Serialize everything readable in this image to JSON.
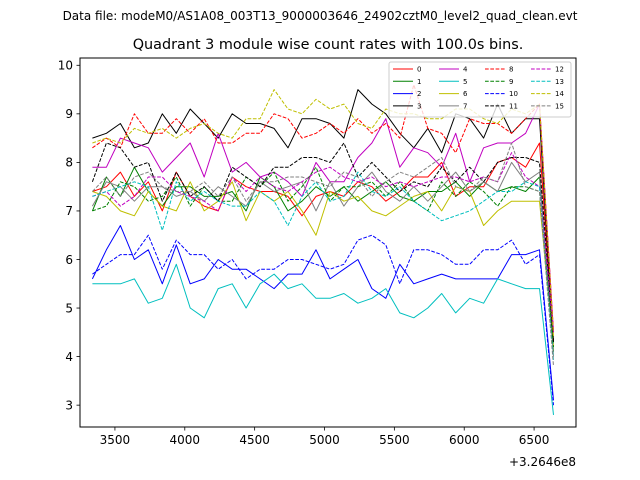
{
  "chart_data": {
    "type": "line",
    "suptitle": "Data file: modeM0/AS1A08_003T13_9000003646_24902cztM0_level2_quad_clean.evt",
    "title": "Quadrant 3 module wise count rates with 100.0s bins.",
    "xlabel": "",
    "ylabel": "",
    "offset_label": "+3.2646e8",
    "xlim": [
      3250,
      6800
    ],
    "ylim": [
      2.55,
      10.15
    ],
    "xticks": [
      3500,
      4000,
      4500,
      5000,
      5500,
      6000,
      6500
    ],
    "xtick_labels": [
      "3500",
      "4000",
      "4500",
      "5000",
      "5500",
      "6000",
      "6500"
    ],
    "yticks": [
      3,
      4,
      5,
      6,
      7,
      8,
      9,
      10
    ],
    "ytick_labels": [
      "3",
      "4",
      "5",
      "6",
      "7",
      "8",
      "9",
      "10"
    ],
    "x": [
      3339,
      3439,
      3539,
      3639,
      3739,
      3839,
      3939,
      4039,
      4139,
      4239,
      4339,
      4439,
      4539,
      4639,
      4739,
      4839,
      4939,
      5039,
      5139,
      5239,
      5339,
      5439,
      5539,
      5639,
      5739,
      5839,
      5939,
      6039,
      6139,
      6239,
      6339,
      6439,
      6539,
      6639
    ],
    "legend_position": "upper right",
    "series": [
      {
        "name": "0",
        "color": "#ff0000",
        "dash": "solid",
        "values": [
          7.4,
          7.5,
          7.8,
          7.3,
          7.6,
          7.0,
          7.8,
          7.3,
          7.1,
          7.0,
          7.7,
          7.5,
          7.4,
          7.4,
          7.3,
          6.9,
          7.3,
          7.4,
          7.3,
          7.6,
          7.5,
          7.2,
          7.4,
          7.7,
          7.7,
          8.0,
          7.3,
          7.5,
          7.5,
          8.0,
          8.1,
          7.9,
          8.4,
          4.3
        ]
      },
      {
        "name": "1",
        "color": "#008000",
        "dash": "solid",
        "values": [
          7.0,
          7.7,
          7.3,
          7.9,
          7.4,
          7.1,
          7.5,
          7.5,
          7.3,
          7.3,
          7.4,
          7.0,
          7.7,
          7.5,
          7.0,
          7.2,
          7.5,
          7.3,
          7.5,
          7.2,
          7.4,
          7.6,
          7.3,
          7.2,
          7.4,
          7.4,
          7.6,
          7.3,
          7.6,
          7.4,
          7.5,
          7.4,
          7.7,
          4.1
        ]
      },
      {
        "name": "2",
        "color": "#0000ff",
        "dash": "solid",
        "values": [
          5.6,
          6.2,
          6.7,
          6.0,
          6.2,
          5.5,
          6.3,
          5.5,
          5.6,
          6.0,
          5.8,
          5.8,
          5.6,
          5.4,
          5.7,
          5.7,
          6.2,
          5.6,
          5.8,
          6.0,
          5.4,
          5.2,
          5.9,
          5.5,
          5.6,
          5.7,
          5.6,
          5.6,
          5.6,
          5.6,
          6.1,
          6.1,
          6.2,
          3.1
        ]
      },
      {
        "name": "3",
        "color": "#000000",
        "dash": "solid",
        "values": [
          8.5,
          8.6,
          8.8,
          8.3,
          8.4,
          9.0,
          8.6,
          9.1,
          8.8,
          8.5,
          9.0,
          8.8,
          8.8,
          8.7,
          8.3,
          8.9,
          8.9,
          8.8,
          8.5,
          9.5,
          9.2,
          9.0,
          8.6,
          8.3,
          8.7,
          8.2,
          9.0,
          8.9,
          8.5,
          9.2,
          8.6,
          8.9,
          8.9,
          4.3
        ]
      },
      {
        "name": "4",
        "color": "#c000c0",
        "dash": "solid",
        "values": [
          7.9,
          7.9,
          8.5,
          8.4,
          8.3,
          7.8,
          8.1,
          8.4,
          7.7,
          8.6,
          7.8,
          8.0,
          7.7,
          7.8,
          7.6,
          7.3,
          8.0,
          7.6,
          7.6,
          8.1,
          8.4,
          8.9,
          7.9,
          8.3,
          8.2,
          7.9,
          8.6,
          7.6,
          8.3,
          8.4,
          8.4,
          8.6,
          9.2,
          4.5
        ]
      },
      {
        "name": "5",
        "color": "#00bfbf",
        "dash": "solid",
        "values": [
          5.5,
          5.5,
          5.5,
          5.6,
          5.1,
          5.2,
          5.9,
          5.0,
          4.8,
          5.4,
          5.5,
          5.0,
          5.5,
          5.7,
          5.4,
          5.5,
          5.2,
          5.2,
          5.3,
          5.1,
          5.2,
          5.4,
          4.9,
          4.8,
          5.0,
          5.3,
          4.9,
          5.2,
          5.1,
          5.6,
          5.5,
          5.4,
          5.4,
          2.8
        ]
      },
      {
        "name": "6",
        "color": "#bfbf00",
        "dash": "solid",
        "values": [
          7.4,
          7.3,
          7.0,
          6.9,
          7.4,
          7.1,
          7.0,
          7.6,
          7.0,
          7.2,
          7.6,
          6.8,
          7.4,
          7.2,
          7.4,
          7.0,
          6.5,
          7.4,
          7.2,
          7.3,
          7.0,
          6.9,
          7.1,
          7.3,
          7.4,
          7.0,
          7.5,
          7.4,
          6.7,
          7.0,
          7.2,
          7.2,
          7.2,
          4.2
        ]
      },
      {
        "name": "7",
        "color": "#808080",
        "dash": "solid",
        "values": [
          7.1,
          7.6,
          7.5,
          7.2,
          7.5,
          7.5,
          7.3,
          7.4,
          7.2,
          7.5,
          7.3,
          7.1,
          7.6,
          7.4,
          7.5,
          7.6,
          7.0,
          7.6,
          7.1,
          7.5,
          7.8,
          7.4,
          7.2,
          7.5,
          7.2,
          7.5,
          7.8,
          7.4,
          7.6,
          7.4,
          8.0,
          7.6,
          7.8,
          4.0
        ]
      },
      {
        "name": "8",
        "color": "#ff0000",
        "dash": "dashed",
        "values": [
          8.3,
          8.5,
          8.3,
          9.0,
          8.6,
          8.6,
          8.9,
          8.6,
          8.9,
          8.4,
          8.4,
          8.6,
          8.6,
          9.0,
          8.9,
          8.5,
          8.6,
          8.8,
          8.6,
          8.9,
          8.6,
          8.8,
          8.5,
          9.6,
          8.7,
          8.6,
          8.2,
          8.9,
          8.8,
          8.8,
          8.6,
          8.9,
          9.2,
          4.5
        ]
      },
      {
        "name": "9",
        "color": "#008000",
        "dash": "dashed",
        "values": [
          7.0,
          7.1,
          7.6,
          7.5,
          7.2,
          7.3,
          7.7,
          7.1,
          7.5,
          7.2,
          7.2,
          7.7,
          7.5,
          7.8,
          7.2,
          7.5,
          7.9,
          7.2,
          7.5,
          7.5,
          7.6,
          7.3,
          7.6,
          7.2,
          7.0,
          7.6,
          7.3,
          7.6,
          7.4,
          7.1,
          7.5,
          7.5,
          7.4,
          4.2
        ]
      },
      {
        "name": "10",
        "color": "#0000ff",
        "dash": "dashed",
        "values": [
          5.7,
          5.9,
          6.1,
          6.1,
          6.5,
          5.8,
          6.4,
          6.1,
          6.1,
          5.8,
          6.0,
          5.6,
          5.8,
          5.8,
          6.0,
          6.0,
          5.9,
          5.8,
          5.9,
          6.4,
          6.5,
          6.3,
          5.5,
          6.2,
          6.2,
          6.1,
          5.9,
          5.9,
          6.2,
          6.2,
          6.4,
          5.9,
          6.1,
          3.0
        ]
      },
      {
        "name": "11",
        "color": "#000000",
        "dash": "dashed",
        "values": [
          7.6,
          8.4,
          8.3,
          7.9,
          8.0,
          7.2,
          7.8,
          7.3,
          7.5,
          7.2,
          7.9,
          7.7,
          7.5,
          7.9,
          7.9,
          8.1,
          8.1,
          8.0,
          8.4,
          7.7,
          8.0,
          7.7,
          7.4,
          7.6,
          7.5,
          7.9,
          7.6,
          7.9,
          7.6,
          8.0,
          8.1,
          8.1,
          8.0,
          4.3
        ]
      },
      {
        "name": "12",
        "color": "#c000c0",
        "dash": "dashed",
        "values": [
          7.3,
          7.4,
          7.1,
          7.3,
          7.7,
          7.7,
          7.4,
          7.3,
          7.2,
          7.0,
          7.7,
          7.4,
          7.7,
          7.5,
          7.4,
          7.6,
          7.8,
          7.9,
          7.7,
          7.6,
          7.7,
          7.5,
          7.6,
          7.5,
          7.6,
          7.7,
          7.7,
          7.6,
          7.7,
          7.6,
          8.2,
          7.7,
          7.5,
          4.5
        ]
      },
      {
        "name": "13",
        "color": "#00bfbf",
        "dash": "dashed",
        "values": [
          7.3,
          7.4,
          7.5,
          7.6,
          7.5,
          6.6,
          7.6,
          7.2,
          7.4,
          7.2,
          7.1,
          7.1,
          7.4,
          7.2,
          6.7,
          7.3,
          7.6,
          7.2,
          7.3,
          7.8,
          7.4,
          7.3,
          7.5,
          7.2,
          7.0,
          6.8,
          6.9,
          7.0,
          7.2,
          7.4,
          7.4,
          7.6,
          7.5,
          3.9
        ]
      },
      {
        "name": "14",
        "color": "#bfbf00",
        "dash": "dashed",
        "values": [
          8.4,
          8.5,
          8.4,
          8.7,
          8.6,
          8.7,
          8.5,
          8.7,
          8.8,
          8.6,
          8.5,
          8.9,
          8.9,
          9.5,
          9.1,
          9.0,
          9.3,
          9.1,
          9.2,
          8.8,
          8.7,
          9.1,
          9.0,
          9.0,
          8.9,
          8.9,
          9.1,
          9.1,
          8.9,
          8.8,
          9.1,
          9.0,
          9.2,
          4.4
        ]
      },
      {
        "name": "15",
        "color": "#808080",
        "dash": "dashed",
        "values": [
          7.4,
          7.7,
          7.3,
          7.7,
          7.8,
          7.5,
          7.4,
          7.4,
          7.6,
          7.3,
          7.7,
          7.2,
          7.6,
          7.6,
          7.7,
          7.7,
          7.6,
          7.5,
          7.8,
          7.7,
          7.3,
          7.6,
          7.8,
          7.7,
          7.9,
          8.1,
          7.5,
          7.4,
          7.7,
          7.6,
          8.4,
          7.5,
          7.4,
          3.8
        ]
      }
    ]
  }
}
